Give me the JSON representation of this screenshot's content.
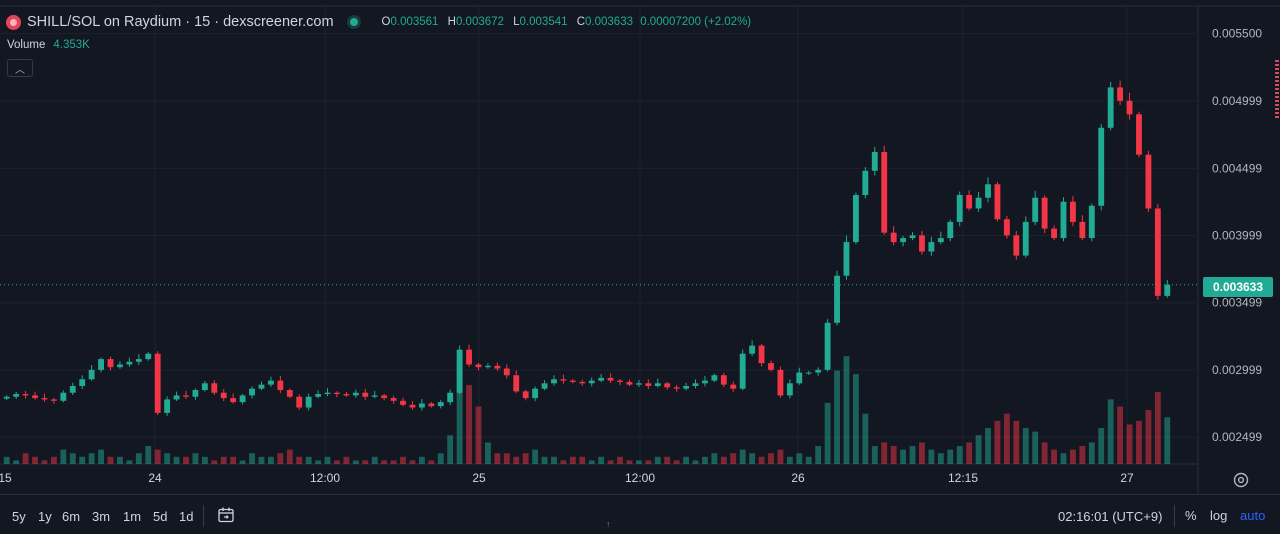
{
  "header": {
    "title": "SHILL/SOL on Raydium · 15 · dexscreener.com",
    "ohlc": [
      {
        "k": "O",
        "v": "0.003561"
      },
      {
        "k": "H",
        "v": "0.003672"
      },
      {
        "k": "L",
        "v": "0.003541"
      },
      {
        "k": "C",
        "v": "0.003633"
      }
    ],
    "change": "0.00007200 (+2.02%)",
    "volume_label": "Volume",
    "volume_value": "4.353K"
  },
  "colors": {
    "up": "#22ab94",
    "down": "#f23645",
    "background": "#131722",
    "grid": "#1e222d"
  },
  "bottom": {
    "ranges": [
      "5y",
      "1y",
      "6m",
      "3m",
      "1m",
      "5d",
      "1d"
    ],
    "timezone": "02:16:01 (UTC+9)",
    "percent": "%",
    "log": "log",
    "auto": "auto"
  },
  "chart_data": {
    "type": "candlestick",
    "current_price": "0.003633",
    "y_ticks": [
      "0.005500",
      "0.004999",
      "0.004499",
      "0.003999",
      "0.003499",
      "0.002999",
      "0.002499"
    ],
    "y_tick_values": [
      0.0055,
      0.004999,
      0.004499,
      0.003999,
      0.003499,
      0.002999,
      0.002499
    ],
    "x_tick_labels": [
      "15",
      "24",
      "12:00",
      "25",
      "12:00",
      "26",
      "12:15",
      "27"
    ],
    "x_tick_positions": [
      0,
      0.12,
      0.25,
      0.375,
      0.5,
      0.625,
      0.75,
      0.875
    ],
    "close_series": [
      0.0028,
      0.00282,
      0.00281,
      0.00279,
      0.00278,
      0.00277,
      0.00283,
      0.00288,
      0.00293,
      0.003,
      0.00308,
      0.00302,
      0.00304,
      0.00306,
      0.00308,
      0.00312,
      0.00268,
      0.00278,
      0.00281,
      0.0028,
      0.00285,
      0.0029,
      0.00283,
      0.00279,
      0.00276,
      0.00281,
      0.00286,
      0.00289,
      0.00292,
      0.00285,
      0.0028,
      0.00272,
      0.0028,
      0.00282,
      0.00283,
      0.00282,
      0.00281,
      0.00283,
      0.0028,
      0.00281,
      0.00279,
      0.00277,
      0.00274,
      0.00272,
      0.00275,
      0.00273,
      0.00276,
      0.00283,
      0.00315,
      0.00304,
      0.00302,
      0.00303,
      0.00301,
      0.00296,
      0.00284,
      0.00279,
      0.00286,
      0.0029,
      0.00293,
      0.00292,
      0.00291,
      0.0029,
      0.00292,
      0.00294,
      0.00292,
      0.00291,
      0.00289,
      0.0029,
      0.00288,
      0.0029,
      0.00287,
      0.00286,
      0.00288,
      0.0029,
      0.00292,
      0.00296,
      0.00289,
      0.00286,
      0.00312,
      0.00318,
      0.00305,
      0.003,
      0.00281,
      0.0029,
      0.00298,
      0.00298,
      0.003,
      0.00335,
      0.0037,
      0.00395,
      0.0043,
      0.00448,
      0.00462,
      0.00402,
      0.00395,
      0.00398,
      0.004,
      0.00388,
      0.00395,
      0.00398,
      0.0041,
      0.0043,
      0.0042,
      0.00428,
      0.00438,
      0.00412,
      0.004,
      0.00385,
      0.0041,
      0.00428,
      0.00405,
      0.00398,
      0.00425,
      0.0041,
      0.00398,
      0.00422,
      0.0048,
      0.0051,
      0.005,
      0.0049,
      0.0046,
      0.0042,
      0.00355,
      0.003633
    ],
    "volume_series": [
      0.2,
      0.1,
      0.3,
      0.2,
      0.1,
      0.2,
      0.4,
      0.3,
      0.2,
      0.3,
      0.4,
      0.2,
      0.2,
      0.1,
      0.3,
      0.5,
      0.4,
      0.3,
      0.2,
      0.2,
      0.3,
      0.2,
      0.1,
      0.2,
      0.2,
      0.1,
      0.3,
      0.2,
      0.2,
      0.3,
      0.4,
      0.2,
      0.2,
      0.1,
      0.2,
      0.1,
      0.2,
      0.1,
      0.1,
      0.2,
      0.1,
      0.1,
      0.2,
      0.1,
      0.2,
      0.1,
      0.3,
      0.8,
      2.9,
      2.2,
      1.6,
      0.6,
      0.3,
      0.3,
      0.2,
      0.3,
      0.4,
      0.2,
      0.2,
      0.1,
      0.2,
      0.2,
      0.1,
      0.2,
      0.1,
      0.2,
      0.1,
      0.1,
      0.1,
      0.2,
      0.2,
      0.1,
      0.2,
      0.1,
      0.2,
      0.3,
      0.2,
      0.3,
      0.4,
      0.3,
      0.2,
      0.3,
      0.4,
      0.2,
      0.3,
      0.2,
      0.5,
      1.7,
      2.6,
      3.0,
      2.5,
      1.4,
      0.5,
      0.6,
      0.5,
      0.4,
      0.5,
      0.6,
      0.4,
      0.3,
      0.4,
      0.5,
      0.6,
      0.8,
      1.0,
      1.2,
      1.4,
      1.2,
      1.0,
      0.9,
      0.6,
      0.4,
      0.3,
      0.4,
      0.5,
      0.6,
      1.0,
      1.8,
      1.6,
      1.1,
      1.2,
      1.5,
      2.0,
      1.3
    ]
  }
}
